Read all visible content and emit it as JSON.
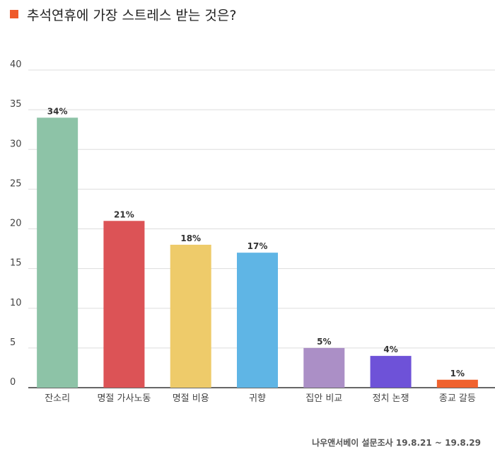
{
  "chart_data": {
    "type": "bar",
    "title": "추석연휴에 가장 스트레스 받는 것은?",
    "categories": [
      "잔소리",
      "명절 가사노동",
      "명절 비용",
      "귀향",
      "집안 비교",
      "정치 논쟁",
      "종교 갈등"
    ],
    "values": [
      34,
      21,
      18,
      17,
      5,
      4,
      1
    ],
    "value_labels": [
      "34%",
      "21%",
      "18%",
      "17%",
      "5%",
      "4%",
      "1%"
    ],
    "colors": [
      "#8dc3a7",
      "#dc5356",
      "#eecb6a",
      "#5fb5e5",
      "#ab8fc6",
      "#6e52d8",
      "#f0622e"
    ],
    "yticks": [
      "0",
      "5",
      "10",
      "15",
      "20",
      "25",
      "30",
      "35",
      "40"
    ],
    "ylim": [
      0,
      40
    ],
    "xlabel": "",
    "ylabel": "",
    "grid": true,
    "legend": "none"
  },
  "title_marker_color": "#ef5a2a",
  "source_text": "나우앤서베이 설문조사 19.8.21 ~ 19.8.29"
}
